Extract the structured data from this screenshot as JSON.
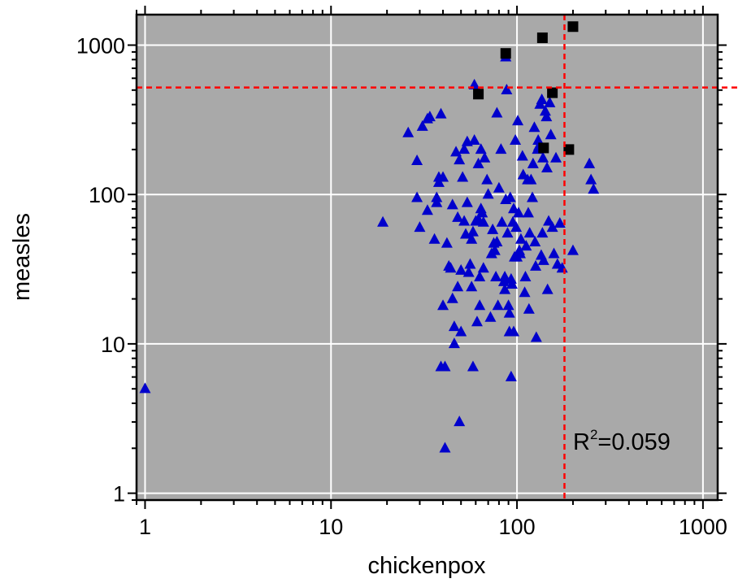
{
  "chart_data": {
    "type": "scatter",
    "xlabel": "chickenpox",
    "ylabel": "measles",
    "x_scale": "log",
    "y_scale": "log",
    "xlim": [
      0.9,
      1200
    ],
    "ylim": [
      0.9,
      1600
    ],
    "x_ticks": [
      1,
      10,
      100,
      1000
    ],
    "y_ticks": [
      1,
      10,
      100,
      1000
    ],
    "x_tick_labels": [
      "1",
      "10",
      "100",
      "1000"
    ],
    "y_tick_labels": [
      "1",
      "10",
      "100",
      "1000"
    ],
    "grid": true,
    "background_color": "#a9a9a9",
    "reference_lines": {
      "x": 180,
      "y": 520,
      "color": "#ff0000",
      "style": "dashed"
    },
    "annotation": {
      "base": "R",
      "superscript": "2",
      "rest": "=0.059"
    },
    "series": [
      {
        "marker": "triangle",
        "color": "#0000cc",
        "points": [
          [
            1,
            5
          ],
          [
            19,
            65
          ],
          [
            26,
            258
          ],
          [
            29,
            95
          ],
          [
            29,
            168
          ],
          [
            30,
            60
          ],
          [
            31,
            285
          ],
          [
            33,
            78
          ],
          [
            33,
            320
          ],
          [
            34,
            330
          ],
          [
            36,
            50
          ],
          [
            37,
            95
          ],
          [
            37,
            88
          ],
          [
            38,
            130
          ],
          [
            38,
            120
          ],
          [
            39,
            7
          ],
          [
            39,
            345
          ],
          [
            40,
            130
          ],
          [
            40,
            18
          ],
          [
            41,
            2
          ],
          [
            41,
            7
          ],
          [
            42,
            47
          ],
          [
            43,
            33
          ],
          [
            44,
            32
          ],
          [
            45,
            85
          ],
          [
            45,
            20
          ],
          [
            46,
            10
          ],
          [
            46,
            13
          ],
          [
            47,
            192
          ],
          [
            48,
            24
          ],
          [
            48,
            70
          ],
          [
            49,
            170
          ],
          [
            49,
            3
          ],
          [
            50,
            12
          ],
          [
            50,
            31
          ],
          [
            51,
            130
          ],
          [
            52,
            66
          ],
          [
            52,
            200
          ],
          [
            53,
            54
          ],
          [
            54,
            225
          ],
          [
            54,
            88
          ],
          [
            55,
            30
          ],
          [
            56,
            34
          ],
          [
            57,
            50
          ],
          [
            57,
            24
          ],
          [
            58,
            56
          ],
          [
            58,
            7
          ],
          [
            59,
            230
          ],
          [
            59,
            540
          ],
          [
            60,
            66
          ],
          [
            61,
            14
          ],
          [
            62,
            68
          ],
          [
            62,
            160
          ],
          [
            63,
            28
          ],
          [
            63,
            18
          ],
          [
            64,
            200
          ],
          [
            64,
            80
          ],
          [
            65,
            75
          ],
          [
            66,
            65
          ],
          [
            66,
            32
          ],
          [
            67,
            175
          ],
          [
            69,
            125
          ],
          [
            70,
            100
          ],
          [
            72,
            15
          ],
          [
            73,
            40
          ],
          [
            74,
            58
          ],
          [
            75,
            47
          ],
          [
            76,
            42
          ],
          [
            77,
            28
          ],
          [
            78,
            350
          ],
          [
            78,
            48
          ],
          [
            79,
            18
          ],
          [
            80,
            110
          ],
          [
            82,
            200
          ],
          [
            83,
            65
          ],
          [
            85,
            26
          ],
          [
            86,
            23
          ],
          [
            86,
            28
          ],
          [
            87,
            92
          ],
          [
            87,
            830
          ],
          [
            88,
            500
          ],
          [
            89,
            55
          ],
          [
            90,
            18
          ],
          [
            91,
            12
          ],
          [
            91,
            16
          ],
          [
            92,
            95
          ],
          [
            93,
            27
          ],
          [
            93,
            6
          ],
          [
            94,
            25
          ],
          [
            95,
            65
          ],
          [
            96,
            12
          ],
          [
            96,
            80
          ],
          [
            97,
            38
          ],
          [
            98,
            230
          ],
          [
            99,
            60
          ],
          [
            100,
            38
          ],
          [
            101,
            310
          ],
          [
            102,
            75
          ],
          [
            103,
            42
          ],
          [
            104,
            40
          ],
          [
            105,
            50
          ],
          [
            107,
            180
          ],
          [
            108,
            135
          ],
          [
            110,
            22
          ],
          [
            111,
            28
          ],
          [
            112,
            45
          ],
          [
            114,
            125
          ],
          [
            115,
            75
          ],
          [
            116,
            17
          ],
          [
            117,
            55
          ],
          [
            119,
            125
          ],
          [
            121,
            95
          ],
          [
            122,
            160
          ],
          [
            124,
            280
          ],
          [
            125,
            48
          ],
          [
            126,
            33
          ],
          [
            127,
            11
          ],
          [
            129,
            200
          ],
          [
            130,
            230
          ],
          [
            131,
            210
          ],
          [
            133,
            400
          ],
          [
            135,
            39
          ],
          [
            136,
            430
          ],
          [
            137,
            55
          ],
          [
            138,
            175
          ],
          [
            139,
            36
          ],
          [
            142,
            360
          ],
          [
            144,
            330
          ],
          [
            145,
            150
          ],
          [
            146,
            23
          ],
          [
            148,
            66
          ],
          [
            150,
            410
          ],
          [
            152,
            250
          ],
          [
            155,
            60
          ],
          [
            158,
            40
          ],
          [
            162,
            175
          ],
          [
            165,
            34
          ],
          [
            170,
            64
          ],
          [
            175,
            32
          ],
          [
            200,
            42
          ],
          [
            245,
            160
          ],
          [
            250,
            125
          ],
          [
            258,
            108
          ]
        ]
      },
      {
        "marker": "square",
        "color": "#000000",
        "points": [
          [
            62,
            470
          ],
          [
            87,
            880
          ],
          [
            137,
            1120
          ],
          [
            139,
            205
          ],
          [
            155,
            480
          ],
          [
            190,
            200
          ],
          [
            200,
            1330
          ]
        ]
      }
    ]
  }
}
